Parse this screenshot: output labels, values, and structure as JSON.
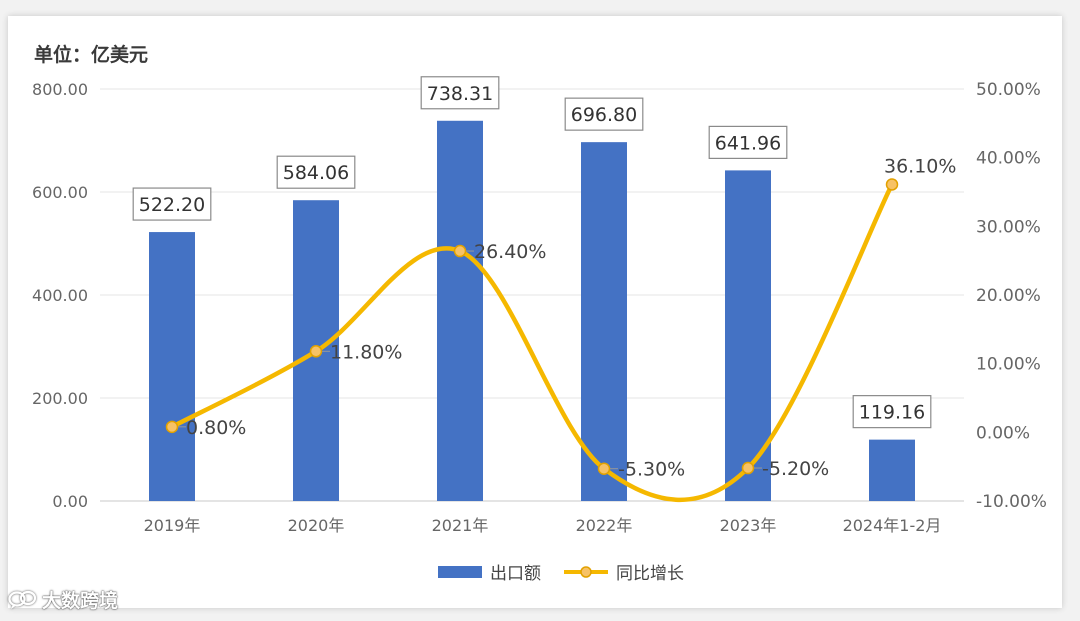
{
  "chart_data": {
    "type": "bar+line",
    "unit_label": "单位：亿美元",
    "categories": [
      "2019年",
      "2020年",
      "2021年",
      "2022年",
      "2023年",
      "2024年1-2月"
    ],
    "series": [
      {
        "name": "出口额",
        "type": "bar",
        "axis": "left",
        "color": "#4472c4",
        "values": [
          522.2,
          584.06,
          738.31,
          696.8,
          641.96,
          119.16
        ],
        "labels": [
          "522.20",
          "584.06",
          "738.31",
          "696.80",
          "641.96",
          "119.16"
        ]
      },
      {
        "name": "同比增长",
        "type": "line",
        "axis": "right",
        "color": "#f5b800",
        "values": [
          0.8,
          11.8,
          26.4,
          -5.3,
          -5.2,
          36.1
        ],
        "labels": [
          "0.80%",
          "11.80%",
          "26.40%",
          "-5.30%",
          "-5.20%",
          "36.10%"
        ]
      }
    ],
    "y_left": {
      "ylim": [
        0,
        800
      ],
      "ticks": [
        "0.00",
        "200.00",
        "400.00",
        "600.00",
        "800.00"
      ]
    },
    "y_right": {
      "ylim": [
        -10,
        50
      ],
      "ticks": [
        "-10.00%",
        "0.00%",
        "10.00%",
        "20.00%",
        "30.00%",
        "40.00%",
        "50.00%"
      ]
    },
    "grid": true,
    "legend": "bottom"
  },
  "watermark": {
    "text": "大数跨境",
    "icon": "chat-bubbles-logo"
  }
}
